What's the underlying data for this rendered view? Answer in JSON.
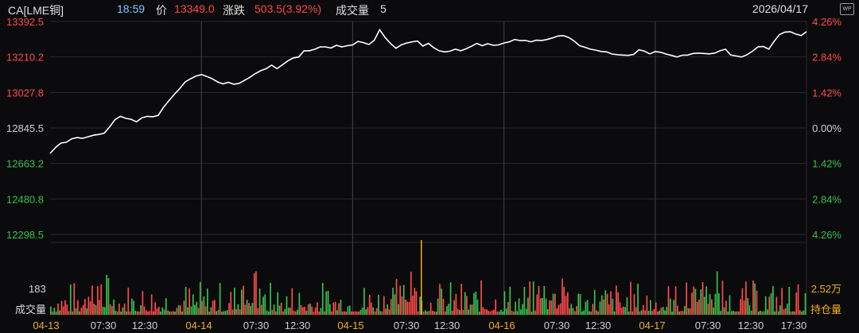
{
  "header": {
    "symbol": "CA[LME铜]",
    "time": "18:59",
    "price_label": "价",
    "price": "13349.0",
    "change_label": "涨跌",
    "change": "503.5(3.92%)",
    "volume_label": "成交量",
    "volume": "5",
    "date": "2026/04/17",
    "wp_icon": "WP"
  },
  "colors": {
    "up": "#ff4a4a",
    "down": "#35c24a",
    "neutral": "#cfcfcf",
    "line": "#ffffff",
    "accent": "#f0b020"
  },
  "chart_data": [
    {
      "type": "line",
      "series": [
        {
          "values": [
            12715,
            12745,
            12768,
            12772,
            12790,
            12796,
            12792,
            12800,
            12808,
            12812,
            12818,
            12850,
            12888,
            12905,
            12895,
            12890,
            12877,
            12898,
            12905,
            12903,
            12910,
            12952,
            12986,
            13018,
            13048,
            13082,
            13098,
            13112,
            13120,
            13110,
            13098,
            13082,
            13072,
            13080,
            13070,
            13075,
            13090,
            13106,
            13125,
            13140,
            13150,
            13168,
            13150,
            13170,
            13190,
            13205,
            13210,
            13242,
            13242,
            13250,
            13262,
            13262,
            13256,
            13270,
            13262,
            13268,
            13272,
            13290,
            13284,
            13274,
            13296,
            13350,
            13310,
            13280,
            13255,
            13272,
            13282,
            13288,
            13292,
            13266,
            13280,
            13258,
            13242,
            13236,
            13240,
            13250,
            13242,
            13252,
            13265,
            13280,
            13268,
            13278,
            13270,
            13272,
            13282,
            13288,
            13300,
            13294,
            13295,
            13288,
            13296,
            13295,
            13300,
            13308,
            13318,
            13320,
            13310,
            13292,
            13268,
            13260,
            13250,
            13245,
            13238,
            13236,
            13225,
            13222,
            13220,
            13218,
            13223,
            13247,
            13240,
            13226,
            13238,
            13234,
            13225,
            13218,
            13210,
            13219,
            13220,
            13228,
            13230,
            13228,
            13226,
            13230,
            13242,
            13250,
            13220,
            13215,
            13210,
            13222,
            13240,
            13262,
            13264,
            13250,
            13290,
            13325,
            13338,
            13340,
            13328,
            13320,
            13340
          ],
          "x_range": [
            "04-13",
            "17:30 04-17"
          ]
        }
      ],
      "ylim": [
        12298.5,
        13392.5
      ],
      "y_ticks_left": [
        "13392.5",
        "13210.2",
        "13027.8",
        "12845.5",
        "12663.2",
        "12480.8",
        "12298.5"
      ],
      "y_ticks_right": [
        "4.26%",
        "2.84%",
        "1.42%",
        "0.00%",
        "1.42%",
        "2.84%",
        "4.26%"
      ],
      "grid": true
    },
    {
      "type": "bar",
      "label": "成交量",
      "y_tick_left": "183",
      "y_tick_right": "2.52万",
      "legend_right": "持仓量",
      "x_ticks": [
        "04-13",
        "07:30",
        "12:30",
        "04-14",
        "07:30",
        "12:30",
        "04-15",
        "07:30",
        "12:30",
        "04-16",
        "07:30",
        "12:30",
        "04-17",
        "07:30",
        "12:30",
        "17:30"
      ],
      "date_ticks": [
        "04-13",
        "04-14",
        "04-15",
        "04-16",
        "04-17"
      ]
    }
  ]
}
